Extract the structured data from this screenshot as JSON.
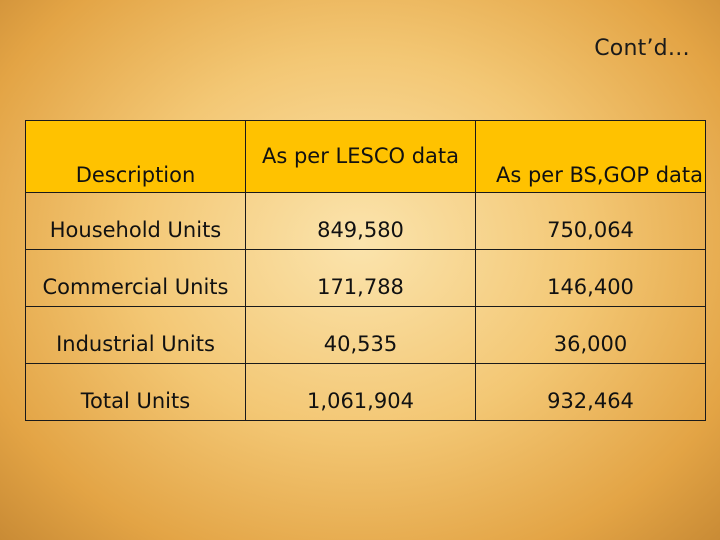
{
  "slide": {
    "title": "Cont’d…"
  },
  "table": {
    "headers": {
      "description": "Description",
      "lesco": "As per LESCO data",
      "gop": "As per BS,GOP data"
    },
    "rows": [
      {
        "label": "Household Units",
        "lesco": "849,580",
        "gop": "750,064"
      },
      {
        "label": "Commercial Units",
        "lesco": "171,788",
        "gop": "146,400"
      },
      {
        "label": "Industrial Units",
        "lesco": "40,535",
        "gop": "36,000"
      },
      {
        "label": "Total Units",
        "lesco": "1,061,904",
        "gop": "932,464"
      }
    ]
  },
  "colors": {
    "header_fill": "#ffc200",
    "border": "#1a1a1a"
  }
}
